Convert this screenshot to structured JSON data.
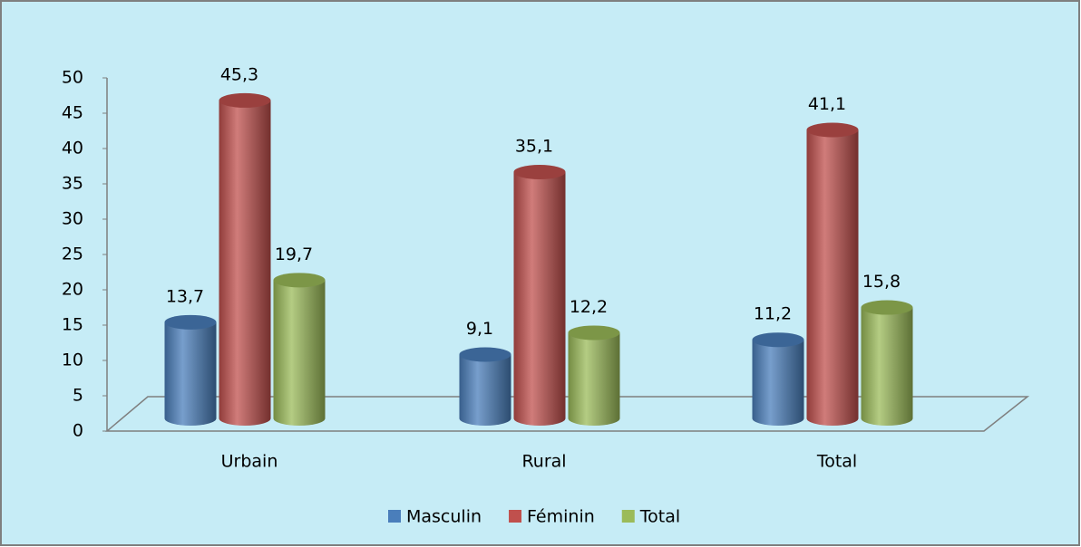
{
  "chart_data": {
    "type": "bar3d",
    "categories": [
      "Urbain",
      "Rural",
      "Total"
    ],
    "series": [
      {
        "name": "Masculin",
        "color": "#4a7ebb",
        "values": [
          13.7,
          9.1,
          11.2
        ],
        "value_labels": [
          "13,7",
          "9,1",
          "11,2"
        ]
      },
      {
        "name": "Féminin",
        "color": "#c0504d",
        "values": [
          45.3,
          35.1,
          41.1
        ],
        "value_labels": [
          "45,3",
          "35,1",
          "41,1"
        ]
      },
      {
        "name": "Total",
        "color": "#9bbb59",
        "values": [
          19.7,
          12.2,
          15.8
        ],
        "value_labels": [
          "19,7",
          "12,2",
          "15,8"
        ]
      }
    ],
    "ylim": [
      0,
      50
    ],
    "yticks": [
      0,
      5,
      10,
      15,
      20,
      25,
      30,
      35,
      40,
      45,
      50
    ],
    "grid": false,
    "legend": "bottom"
  }
}
